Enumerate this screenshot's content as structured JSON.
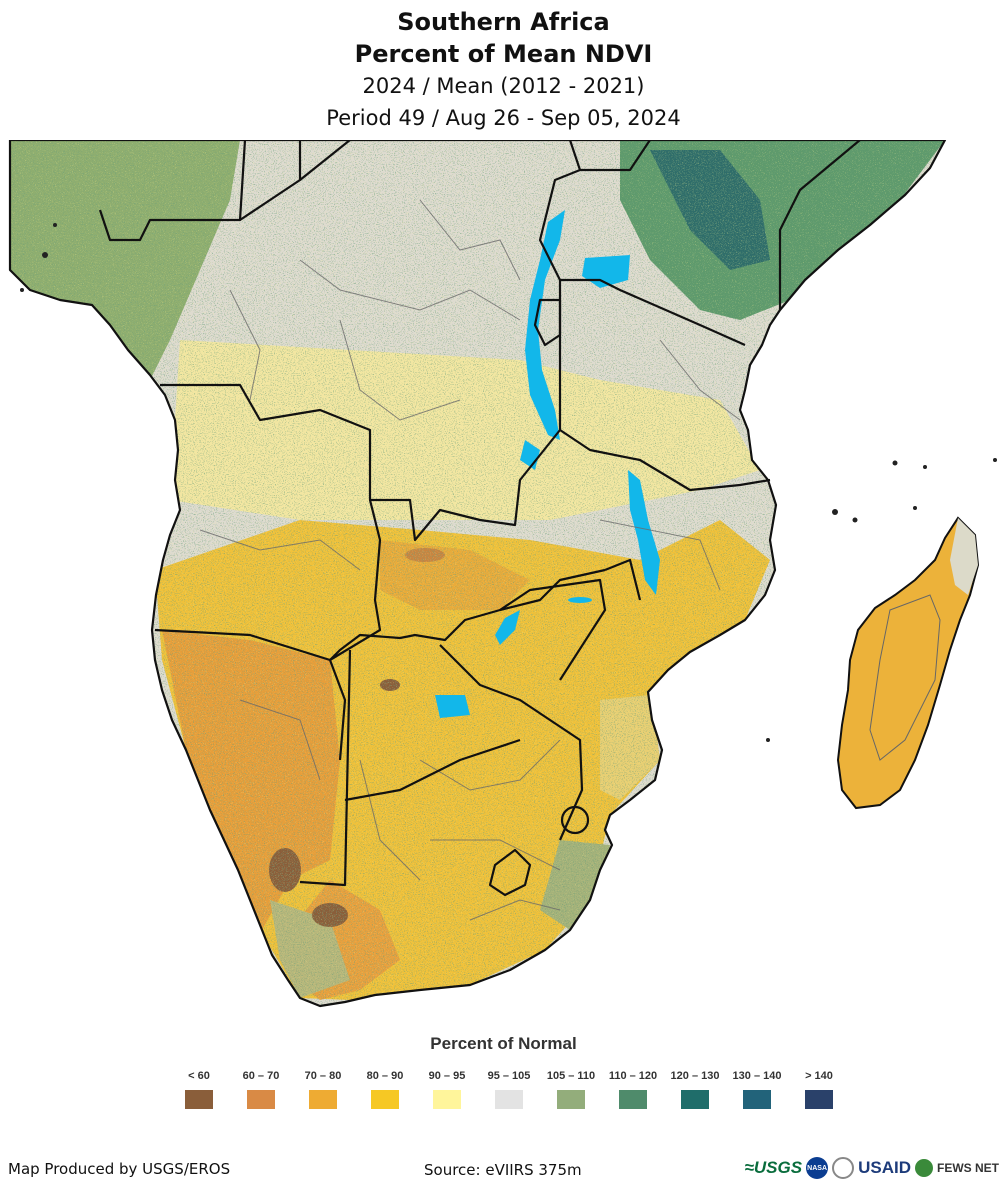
{
  "title": {
    "line1": "Southern Africa",
    "line2": "Percent of Mean NDVI",
    "line3": "2024 / Mean (2012 - 2021)",
    "line4": "Period 49 / Aug 26 - Sep 05, 2024"
  },
  "legend": {
    "title": "Percent of Normal",
    "items": [
      {
        "label": "< 60",
        "color": "#8a5e3a"
      },
      {
        "label": "60 – 70",
        "color": "#d98a45"
      },
      {
        "label": "70 – 80",
        "color": "#eeab33"
      },
      {
        "label": "80 – 90",
        "color": "#f6c824"
      },
      {
        "label": "90 – 95",
        "color": "#fff59b"
      },
      {
        "label": "95 – 105",
        "color": "#e3e3e3"
      },
      {
        "label": "105 – 110",
        "color": "#93ad7b"
      },
      {
        "label": "110 – 120",
        "color": "#4f8b6b"
      },
      {
        "label": "120 – 130",
        "color": "#1f6d6a"
      },
      {
        "label": "130 – 140",
        "color": "#22637a"
      },
      {
        "label": "> 140",
        "color": "#2a416a"
      }
    ]
  },
  "map": {
    "water_color": "#12b7ea",
    "border_color": "#111111"
  },
  "footer": {
    "produced_by": "Map Produced by USGS/EROS",
    "source": "Source: eVIIRS 375m"
  },
  "logos": {
    "usgs": "≈USGS",
    "nasa": "NASA",
    "usaid": "USAID",
    "fews": "FEWS NET"
  }
}
